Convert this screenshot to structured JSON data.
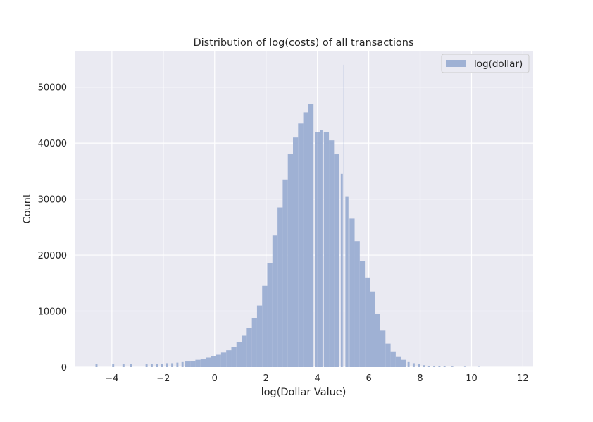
{
  "chart_data": {
    "type": "histogram",
    "title": "Distribution of log(costs) of all transactions",
    "xlabel": "log(Dollar Value)",
    "ylabel": "Count",
    "xlim": [
      -5.45,
      12.4
    ],
    "ylim": [
      0,
      56500
    ],
    "xticks": [
      -4,
      -2,
      0,
      2,
      4,
      6,
      8,
      10,
      12
    ],
    "xtick_labels": [
      "−4",
      "−2",
      "0",
      "2",
      "4",
      "6",
      "8",
      "10",
      "12"
    ],
    "yticks": [
      0,
      10000,
      20000,
      30000,
      40000,
      50000
    ],
    "ytick_labels": [
      "0",
      "10000",
      "20000",
      "30000",
      "40000",
      "50000"
    ],
    "grid": true,
    "legend": {
      "position": "top-right",
      "entries": [
        "log(dollar)"
      ]
    },
    "bar_color": "#9fb1d4",
    "background_color": "#eaeaf2",
    "series": [
      {
        "name": "log(dollar)",
        "x": [
          -4.6,
          -3.95,
          -3.55,
          -3.25,
          -2.65,
          -2.45,
          -2.25,
          -2.05,
          -1.85,
          -1.65,
          -1.45,
          -1.25,
          -1.05,
          -0.85,
          -0.65,
          -0.45,
          -0.25,
          -0.05,
          0.15,
          0.35,
          0.55,
          0.75,
          0.95,
          1.15,
          1.35,
          1.55,
          1.75,
          1.95,
          2.15,
          2.35,
          2.55,
          2.75,
          2.95,
          3.15,
          3.35,
          3.55,
          3.75,
          3.95,
          4.05,
          4.15,
          4.35,
          4.55,
          4.75,
          4.95,
          5.03,
          5.15,
          5.35,
          5.55,
          5.75,
          5.95,
          6.15,
          6.35,
          6.55,
          6.75,
          6.95,
          7.15,
          7.35,
          7.55,
          7.75,
          7.95,
          8.15,
          8.35,
          8.55,
          8.75,
          8.95,
          9.25,
          9.75,
          10.3
        ],
        "counts": [
          500,
          500,
          500,
          500,
          500,
          600,
          600,
          600,
          700,
          700,
          800,
          900,
          1000,
          1100,
          1300,
          1500,
          1700,
          1900,
          2200,
          2600,
          3000,
          3600,
          4500,
          5600,
          7000,
          8800,
          11000,
          14500,
          18500,
          23500,
          28500,
          33500,
          38000,
          41000,
          43500,
          45500,
          47000,
          42000,
          42000,
          42300,
          42000,
          40500,
          38000,
          34500,
          54000,
          30500,
          26500,
          22500,
          19000,
          16000,
          13500,
          9500,
          6500,
          4200,
          2800,
          1800,
          1300,
          900,
          700,
          500,
          350,
          250,
          180,
          150,
          120,
          100,
          80,
          50
        ]
      }
    ]
  }
}
